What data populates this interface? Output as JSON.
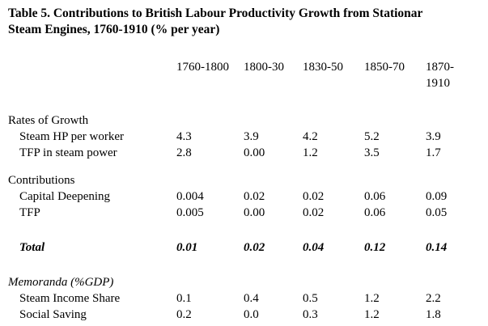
{
  "title": {
    "line1": "Table 5. Contributions to British Labour Productivity Growth from Stationar",
    "line2": "Steam Engines, 1760-1910 (% per year)"
  },
  "table": {
    "columns": [
      "1760-1800",
      "1800-30",
      "1830-50",
      "1850-70",
      "1870- 1910"
    ],
    "sections": [
      {
        "header": "Rates of Growth",
        "rows": [
          {
            "label": "Steam HP per worker",
            "values": [
              "4.3",
              "3.9",
              "4.2",
              "5.2",
              "3.9"
            ]
          },
          {
            "label": "TFP in steam power",
            "values": [
              "2.8",
              "0.00",
              "1.2",
              "3.5",
              "1.7"
            ]
          }
        ]
      },
      {
        "header": "Contributions",
        "rows": [
          {
            "label": "Capital Deepening",
            "values": [
              "0.004",
              "0.02",
              "0.02",
              "0.06",
              "0.09"
            ]
          },
          {
            "label": "TFP",
            "values": [
              "0.005",
              "0.00",
              "0.02",
              "0.06",
              "0.05"
            ]
          }
        ]
      },
      {
        "header": "",
        "rows": [
          {
            "label": "Total",
            "values": [
              "0.01",
              "0.02",
              "0.04",
              "0.12",
              "0.14"
            ]
          }
        ]
      },
      {
        "header": "Memoranda (%GDP)",
        "rows": [
          {
            "label": "Steam Income Share",
            "values": [
              "0.1",
              "0.4",
              "0.5",
              "1.2",
              "2.2"
            ]
          },
          {
            "label": "Social Saving",
            "values": [
              "0.2",
              "0.0",
              "0.3",
              "1.2",
              "1.8"
            ]
          }
        ]
      }
    ]
  }
}
